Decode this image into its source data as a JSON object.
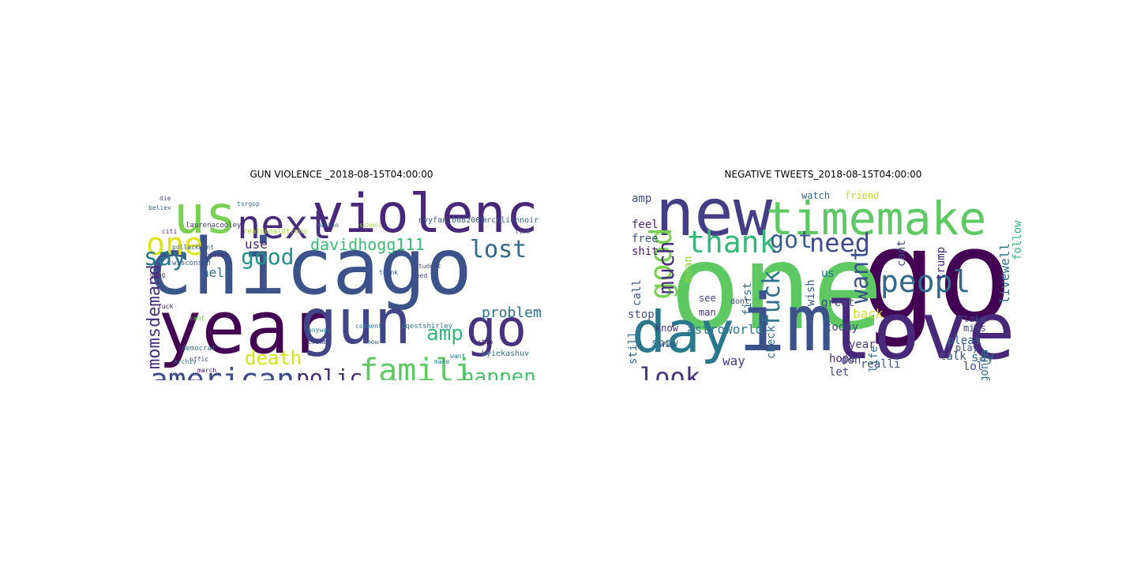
{
  "figure": {
    "left": {
      "title": "GUN VIOLENCE _2018-08-15T04:00:00",
      "words": [
        {
          "text": "chicago",
          "color": "#3b528b"
        },
        {
          "text": "year",
          "color": "#440154"
        },
        {
          "text": "gun",
          "color": "#414487"
        },
        {
          "text": "violenc",
          "color": "#482878"
        },
        {
          "text": "us",
          "color": "#7ad151"
        },
        {
          "text": "next",
          "color": "#472d7b"
        },
        {
          "text": "go",
          "color": "#46327e"
        },
        {
          "text": "american",
          "color": "#3e4a89"
        },
        {
          "text": "famili",
          "color": "#5ec962"
        },
        {
          "text": "polic",
          "color": "#472c7a"
        },
        {
          "text": "happen",
          "color": "#4ac16d"
        },
        {
          "text": "one",
          "color": "#dde318"
        },
        {
          "text": "say",
          "color": "#2a788e"
        },
        {
          "text": "good",
          "color": "#21918c"
        },
        {
          "text": "davidhogg111",
          "color": "#3dbc74"
        },
        {
          "text": "lost",
          "color": "#31688e"
        },
        {
          "text": "death",
          "color": "#d2e21b"
        },
        {
          "text": "amp",
          "color": "#35b779"
        },
        {
          "text": "problem",
          "color": "#2c728e"
        },
        {
          "text": "momsdemand",
          "color": "#472f7d"
        },
        {
          "text": "embarrass",
          "color": "#3b528b"
        },
        {
          "text": "use",
          "color": "#482173"
        },
        {
          "text": "help",
          "color": "#31688e"
        },
        {
          "text": "nyyfan10082005",
          "color": "#3b528b"
        },
        {
          "text": "mrcolionnoir",
          "color": "#355f8d"
        },
        {
          "text": "kyiekashuv",
          "color": "#2c728e"
        },
        {
          "text": "uqestshirley",
          "color": "#287c8e"
        },
        {
          "text": "laurenacooley",
          "color": "#453781"
        },
        {
          "text": "realdonaldtrump",
          "color": "#addc30"
        },
        {
          "text": "wisconsin",
          "color": "#39568c"
        },
        {
          "text": "pollackhunt",
          "color": "#38588c"
        },
        {
          "text": "democrat",
          "color": "#2d708e"
        },
        {
          "text": "nation",
          "color": "#2e6e8e"
        },
        {
          "text": "school",
          "color": "#9fda3a"
        },
        {
          "text": "believ",
          "color": "#31688e"
        },
        {
          "text": "archiv",
          "color": "#2a768e"
        },
        {
          "text": "crime",
          "color": "#443a83"
        },
        {
          "text": "student",
          "color": "#3e4c8a"
        },
        {
          "text": "anyway",
          "color": "#26828e"
        },
        {
          "text": "comment",
          "color": "#2a788e"
        },
        {
          "text": "march",
          "color": "#481467"
        },
        {
          "text": "offic",
          "color": "#3e4a89"
        },
        {
          "text": "make",
          "color": "#26828e"
        },
        {
          "text": "think",
          "color": "#39568c"
        },
        {
          "text": "need",
          "color": "#3e4a89"
        },
        {
          "text": "stop",
          "color": "#471365"
        },
        {
          "text": "cant",
          "color": "#6ece58"
        },
        {
          "text": "die",
          "color": "#3f4788"
        },
        {
          "text": "fuck",
          "color": "#440154"
        },
        {
          "text": "live",
          "color": "#2c728e"
        },
        {
          "text": "gang",
          "color": "#481c6e"
        },
        {
          "text": "citi",
          "color": "#482878"
        },
        {
          "text": "promot",
          "color": "#472d7b"
        },
        {
          "text": "want",
          "color": "#26828e"
        },
        {
          "text": "know",
          "color": "#355f8d"
        },
        {
          "text": "time",
          "color": "#3e4a89"
        },
        {
          "text": "tsrgop",
          "color": "#2c728e"
        },
        {
          "text": "fri",
          "color": "#bddf26"
        }
      ]
    },
    "right": {
      "title": "NEGATIVE TWEETS_2018-08-15T04:00:00",
      "words": [
        {
          "text": "go",
          "color": "#440154"
        },
        {
          "text": "one",
          "color": "#5ec962"
        },
        {
          "text": "im",
          "color": "#3b528b"
        },
        {
          "text": "love",
          "color": "#482878"
        },
        {
          "text": "new",
          "color": "#433e85"
        },
        {
          "text": "day",
          "color": "#2a788e"
        },
        {
          "text": "timemake",
          "color": "#5ec962"
        },
        {
          "text": "thank",
          "color": "#35b779"
        },
        {
          "text": "need",
          "color": "#3e4a89"
        },
        {
          "text": "got",
          "color": "#355f8d"
        },
        {
          "text": "peopl",
          "color": "#31688e"
        },
        {
          "text": "good",
          "color": "#7ad151"
        },
        {
          "text": "much",
          "color": "#472d7b"
        },
        {
          "text": "fuck",
          "color": "#2c728e"
        },
        {
          "text": "want",
          "color": "#3b528b"
        },
        {
          "text": "look",
          "color": "#46327e"
        },
        {
          "text": "amp",
          "color": "#3e4c8a"
        },
        {
          "text": "feel",
          "color": "#482173"
        },
        {
          "text": "free",
          "color": "#3b528b"
        },
        {
          "text": "shit",
          "color": "#481c6e"
        },
        {
          "text": "mean",
          "color": "#8fd744"
        },
        {
          "text": "call",
          "color": "#39568c"
        },
        {
          "text": "stop",
          "color": "#3b528b"
        },
        {
          "text": "still",
          "color": "#31688e"
        },
        {
          "text": "show",
          "color": "#2a788e"
        },
        {
          "text": "thing",
          "color": "#3e4a89"
        },
        {
          "text": "know",
          "color": "#472d7b"
        },
        {
          "text": "win",
          "color": "#3e4a89"
        },
        {
          "text": "astroworld",
          "color": "#2a788e"
        },
        {
          "text": "way",
          "color": "#433e85"
        },
        {
          "text": "see",
          "color": "#3f4788"
        },
        {
          "text": "man",
          "color": "#472f7d"
        },
        {
          "text": "first",
          "color": "#31688e"
        },
        {
          "text": "dont",
          "color": "#3e4a89"
        },
        {
          "text": "check",
          "color": "#2e6e8e"
        },
        {
          "text": "evengirl",
          "color": "#38588c"
        },
        {
          "text": "never",
          "color": "#46327e"
        },
        {
          "text": "wish",
          "color": "#355f8d"
        },
        {
          "text": "great",
          "color": "#3e4a89"
        },
        {
          "text": "hope",
          "color": "#482878"
        },
        {
          "text": "let",
          "color": "#414487"
        },
        {
          "text": "today",
          "color": "#3e4c8a"
        },
        {
          "text": "year",
          "color": "#453781"
        },
        {
          "text": "don",
          "color": "#3e4a89"
        },
        {
          "text": "realli",
          "color": "#3b528b"
        },
        {
          "text": "think",
          "color": "#dde318"
        },
        {
          "text": "come",
          "color": "#3e4c8a"
        },
        {
          "text": "life",
          "color": "#31688e"
        },
        {
          "text": "back",
          "color": "#d2e21b"
        },
        {
          "text": "us",
          "color": "#2a788e"
        },
        {
          "text": "cant",
          "color": "#3e4a89"
        },
        {
          "text": "trump",
          "color": "#482878"
        },
        {
          "text": "say",
          "color": "#31688e"
        },
        {
          "text": "livewell",
          "color": "#2c728e"
        },
        {
          "text": "follow",
          "color": "#35b779"
        },
        {
          "text": "pleas",
          "color": "#355f8d"
        },
        {
          "text": "talk",
          "color": "#3b528b"
        },
        {
          "text": "lol",
          "color": "#3e4a89"
        },
        {
          "text": "gonna",
          "color": "#2c728e"
        },
        {
          "text": "trvisxx",
          "color": "#35b779"
        },
        {
          "text": "sleep",
          "color": "#3b528b"
        },
        {
          "text": "play",
          "color": "#3e4a89"
        },
        {
          "text": "take",
          "color": "#3e4a89"
        },
        {
          "text": "miss",
          "color": "#414487"
        },
        {
          "text": "watch",
          "color": "#31688e"
        },
        {
          "text": "friend",
          "color": "#bddf26"
        }
      ]
    }
  }
}
